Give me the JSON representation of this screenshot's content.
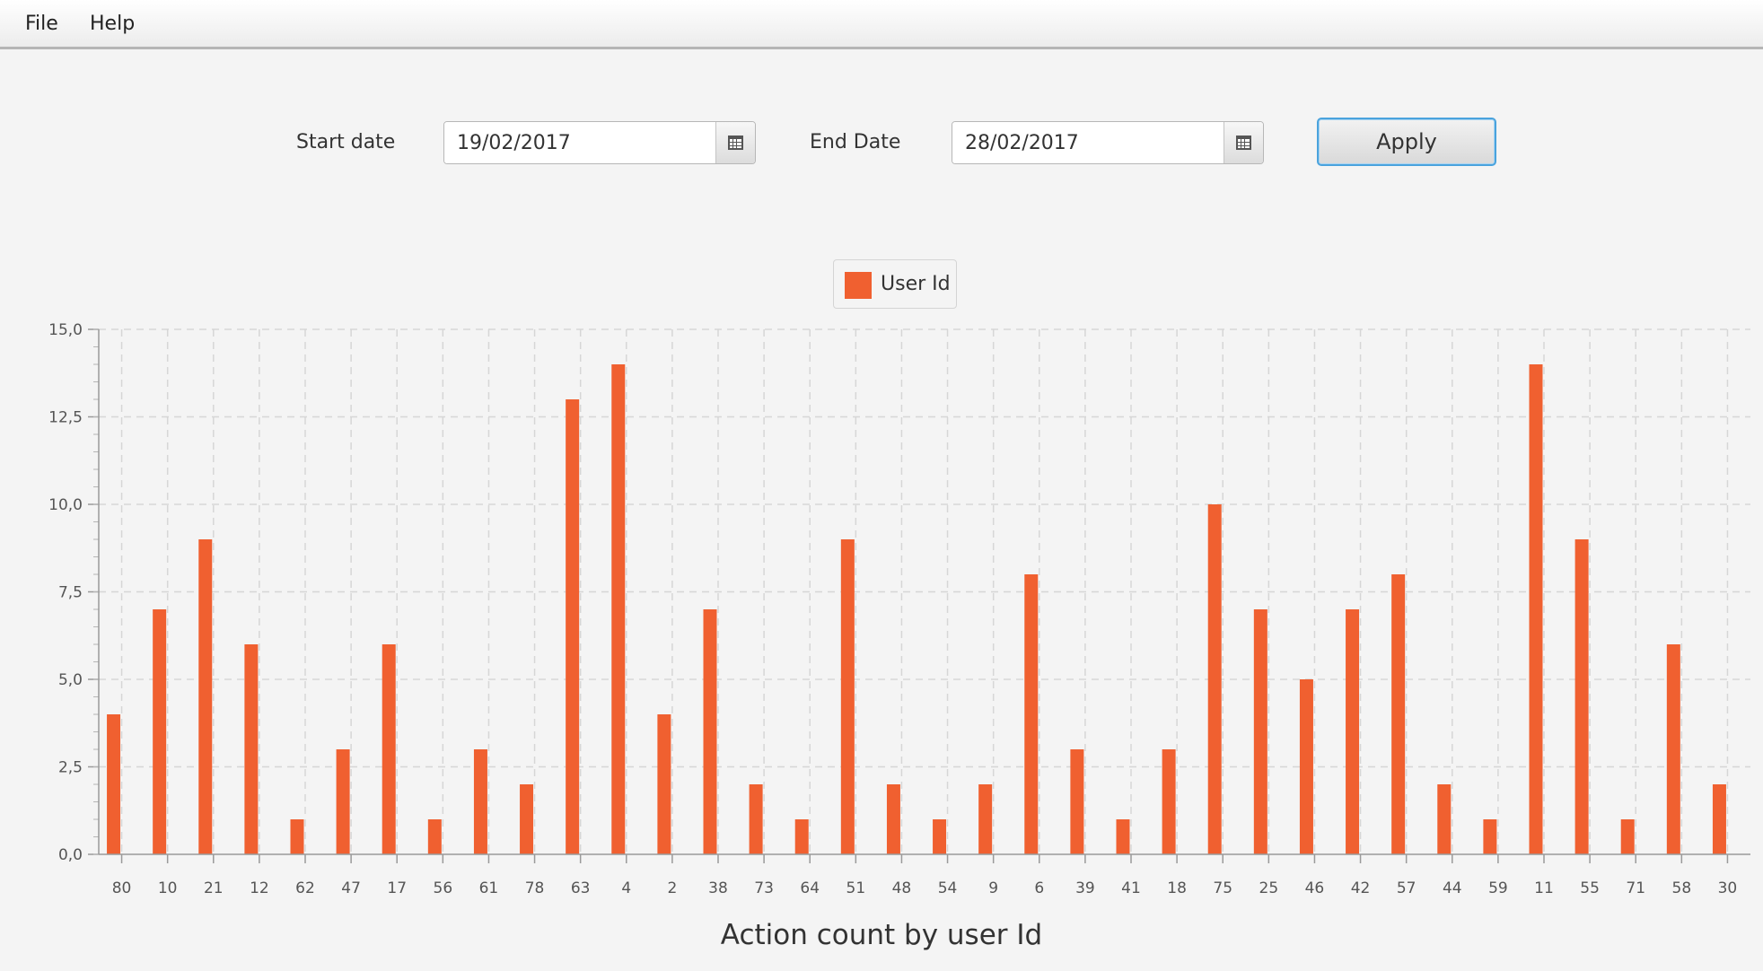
{
  "menu": {
    "items": [
      "File",
      "Help"
    ]
  },
  "filter": {
    "start_label": "Start date",
    "start_value": "19/02/2017",
    "end_label": "End Date",
    "end_value": "28/02/2017",
    "apply_label": "Apply",
    "calendar_icon": "calendar-icon"
  },
  "colors": {
    "bar": "#f06030",
    "accent": "#4aa3dd"
  },
  "chart_data": {
    "type": "bar",
    "title": "Action count by user Id",
    "xlabel": "",
    "ylabel": "",
    "legend": {
      "placement": "top-center",
      "entries": [
        "User Id"
      ]
    },
    "grid": true,
    "ylim": [
      0,
      15
    ],
    "yticks": [
      "0,0",
      "2,5",
      "5,0",
      "7,5",
      "10,0",
      "12,5",
      "15,0"
    ],
    "categories": [
      "80",
      "10",
      "21",
      "12",
      "62",
      "47",
      "17",
      "56",
      "61",
      "78",
      "63",
      "4",
      "2",
      "38",
      "73",
      "64",
      "51",
      "48",
      "54",
      "9",
      "6",
      "39",
      "41",
      "18",
      "75",
      "25",
      "46",
      "42",
      "57",
      "44",
      "59",
      "11",
      "55",
      "71",
      "58",
      "30"
    ],
    "series": [
      {
        "name": "User Id",
        "values": [
          4,
          7,
          9,
          6,
          1,
          3,
          6,
          1,
          3,
          2,
          13,
          14,
          4,
          7,
          2,
          1,
          9,
          2,
          1,
          2,
          8,
          3,
          1,
          3,
          10,
          7,
          5,
          7,
          8,
          2,
          1,
          14,
          9,
          1,
          6,
          2
        ]
      }
    ]
  }
}
